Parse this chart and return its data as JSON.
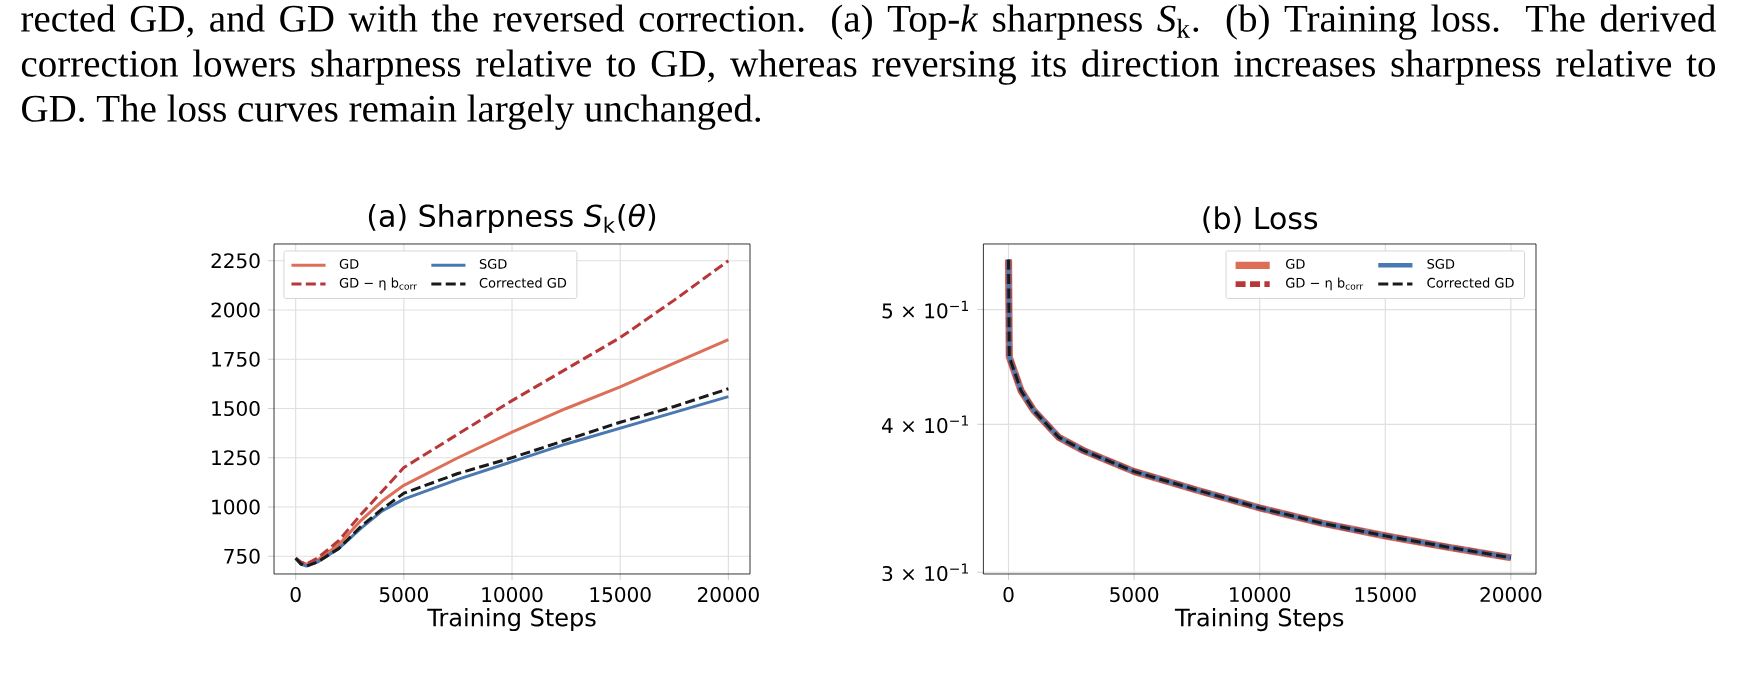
{
  "chart_data": [
    {
      "type": "line",
      "title": "(a) Sharpness *S*$_{k}$(*θ*)",
      "xlabel": "Training Steps",
      "annotations": [
        "rected GD, and GD with the reversed correction. (a) Top-*k* sharpness *S*$_{k}$. (b) Training loss. The derived correction lowers sharpness relative to GD, whereas reversing its direction increases sharpness relative to GD. The loss curves remain largely unchanged."
      ],
      "x": [
        0,
        250,
        500,
        1000,
        2000,
        3000,
        4000,
        5000,
        7500,
        10000,
        12500,
        15000,
        17500,
        20000
      ],
      "series": [
        {
          "name": "GD",
          "color": "#dd6e58",
          "line_style": "solid",
          "values": [
            740,
            720,
            710,
            730,
            810,
            930,
            1030,
            1110,
            1250,
            1380,
            1500,
            1610,
            1730,
            1850
          ]
        },
        {
          "name": "GD − η b$_{corr}$",
          "color": "#b8383a",
          "line_style": "dashed",
          "values": [
            740,
            720,
            710,
            740,
            830,
            960,
            1080,
            1200,
            1370,
            1540,
            1700,
            1860,
            2050,
            2250
          ]
        },
        {
          "name": "SGD",
          "color": "#4a78b0",
          "line_style": "solid",
          "values": [
            740,
            710,
            700,
            720,
            790,
            890,
            980,
            1040,
            1140,
            1230,
            1320,
            1400,
            1480,
            1560
          ]
        },
        {
          "name": "Corrected GD",
          "color": "#1a1a1a",
          "line_style": "dashed",
          "values": [
            740,
            710,
            700,
            720,
            790,
            900,
            990,
            1070,
            1170,
            1250,
            1340,
            1430,
            1510,
            1600
          ]
        }
      ],
      "xlim": [
        -1000,
        21000
      ],
      "ylim": [
        660,
        2335
      ],
      "xticks": [
        0,
        5000,
        10000,
        15000,
        20000
      ],
      "yticks": [
        750,
        1000,
        1250,
        1500,
        1750,
        2000,
        2250
      ],
      "grid": true,
      "legend": "top left"
    },
    {
      "type": "line",
      "title": "(b) Loss",
      "xlabel": "Training Steps",
      "x": [
        0,
        30,
        500,
        1000,
        2000,
        3000,
        5000,
        7500,
        10000,
        12500,
        15000,
        17500,
        20000
      ],
      "series": [
        {
          "name": "GD",
          "color": "#dd6e58",
          "line_style": "solid",
          "values": [
            0.551,
            0.456,
            0.427,
            0.411,
            0.39,
            0.38,
            0.365,
            0.352,
            0.34,
            0.33,
            0.322,
            0.315,
            0.3086
          ]
        },
        {
          "name": "GD − η b$_{corr}$",
          "color": "#b8383a",
          "line_style": "dashed",
          "values": [
            0.551,
            0.456,
            0.427,
            0.411,
            0.39,
            0.38,
            0.365,
            0.352,
            0.34,
            0.33,
            0.322,
            0.315,
            0.3086
          ]
        },
        {
          "name": "SGD",
          "color": "#4a78b0",
          "line_style": "solid",
          "values": [
            0.551,
            0.456,
            0.427,
            0.411,
            0.39,
            0.38,
            0.365,
            0.352,
            0.34,
            0.33,
            0.322,
            0.315,
            0.3086
          ]
        },
        {
          "name": "Corrected GD",
          "color": "#1a1a1a",
          "line_style": "dashed",
          "values": [
            0.551,
            0.456,
            0.427,
            0.411,
            0.39,
            0.38,
            0.365,
            0.352,
            0.34,
            0.33,
            0.322,
            0.315,
            0.3086
          ]
        }
      ],
      "xlim": [
        -1000,
        21000
      ],
      "ylim": [
        0.299,
        0.568
      ],
      "xticks": [
        0,
        5000,
        10000,
        15000,
        20000
      ],
      "yticks": [
        {
          "value": 0.3,
          "label": "3 × 10$^{−1}$"
        },
        {
          "value": 0.4,
          "label": "4 × 10$^{−1}$"
        },
        {
          "value": 0.5,
          "label": "5 × 10$^{−1}$"
        }
      ],
      "log": "y",
      "grid": true,
      "legend": "top right"
    }
  ]
}
